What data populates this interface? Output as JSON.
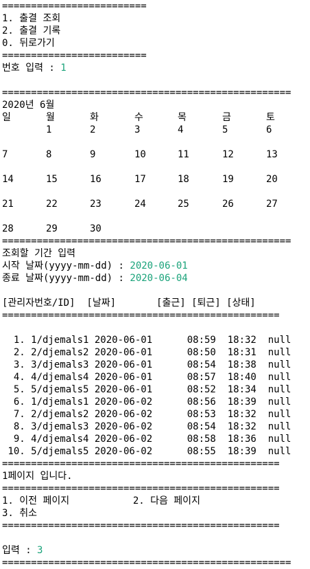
{
  "colors": {
    "input_value": "#1aa37a",
    "text": "#000000",
    "background": "#ffffff"
  },
  "menu": {
    "sep_short": "=========================",
    "items": [
      "1. 출결 조회",
      "2. 출결 기록",
      "0. 뒤로가기"
    ],
    "prompt_label": "번호 입력 : ",
    "prompt_value": "1"
  },
  "calendar": {
    "sep_long": "==================================================",
    "title": "2020년 6월",
    "weekdays": [
      "일",
      "월",
      "화",
      "수",
      "목",
      "금",
      "토"
    ],
    "weeks": [
      [
        "",
        "1",
        "2",
        "3",
        "4",
        "5",
        "6"
      ],
      [
        "7",
        "8",
        "9",
        "10",
        "11",
        "12",
        "13"
      ],
      [
        "14",
        "15",
        "16",
        "17",
        "18",
        "19",
        "20"
      ],
      [
        "21",
        "22",
        "23",
        "24",
        "25",
        "26",
        "27"
      ],
      [
        "28",
        "29",
        "30",
        "",
        "",
        "",
        ""
      ]
    ]
  },
  "period": {
    "title": "조회할 기간 입력",
    "start_label": "시작 날짜(yyyy-mm-dd) : ",
    "start_value": "2020-06-01",
    "end_label": "종료 날짜(yyyy-mm-dd) : ",
    "end_value": "2020-06-04"
  },
  "table": {
    "header": "[관리자번호/ID]  [날짜]       [출근] [퇴근] [상태]",
    "sep": "================================================",
    "rows": [
      "  1. 1/djemals1 2020-06-01      08:59  18:32  null",
      "  2. 2/djemals2 2020-06-01      08:50  18:31  null",
      "  3. 3/djemals3 2020-06-01      08:54  18:38  null",
      "  4. 4/djemals4 2020-06-01      08:57  18:40  null",
      "  5. 5/djemals5 2020-06-01      08:52  18:34  null",
      "  6. 1/djemals1 2020-06-02      08:56  18:39  null",
      "  7. 2/djemals2 2020-06-02      08:53  18:32  null",
      "  8. 3/djemals3 2020-06-02      08:54  18:32  null",
      "  9. 4/djemals4 2020-06-02      08:58  18:36  null",
      " 10. 5/djemals5 2020-06-02      08:55  18:39  null"
    ]
  },
  "paging": {
    "page_info": "1페이지 입니다.",
    "options_line": "1. 이전 페이지           2. 다음 페이지",
    "cancel": "3. 취소",
    "prompt_label": "입력 : ",
    "prompt_value": "3"
  }
}
